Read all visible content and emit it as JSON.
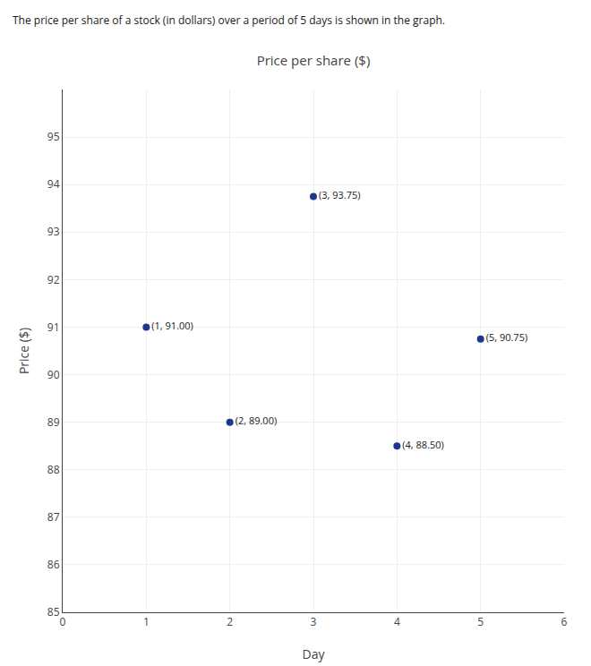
{
  "chart_data": {
    "type": "scatter",
    "title": "Price per share ($)",
    "subtitle": "The price per share of a stock (in dollars) over a period of 5 days is shown in the graph.",
    "x_label": "Day",
    "y_label": "Price ($)",
    "x": [
      1,
      2,
      3,
      4,
      5
    ],
    "values": [
      91.0,
      89.0,
      93.75,
      88.5,
      90.75
    ],
    "value_labels": [
      "(1, 91.00)",
      "(2, 89.00)",
      "(3, 93.75)",
      "(4, 88.50)",
      "(5, 90.75)"
    ],
    "data_labels": true,
    "color": "#1a3a8c",
    "xlim": [
      0,
      6
    ],
    "xticks": [
      0,
      1,
      2,
      3,
      4,
      5,
      6
    ],
    "ylim": [
      85,
      96
    ],
    "yticks": [
      85,
      86,
      87,
      88,
      89,
      90,
      91,
      92,
      93,
      94,
      95
    ],
    "grid": true
  }
}
